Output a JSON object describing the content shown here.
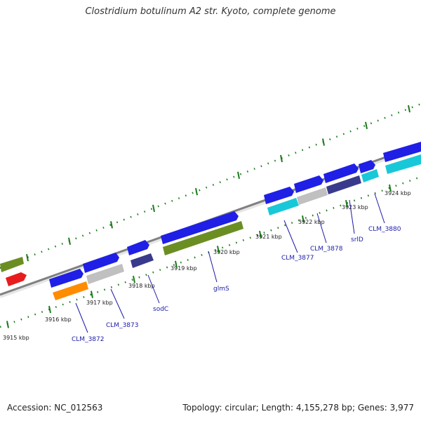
{
  "title": "Clostridium botulinum A2 str. Kyoto, complete genome",
  "footer": {
    "accession": "Accession: NC_012563",
    "summary": "Topology: circular; Length: 4,155,278 bp; Genes: 3,977"
  },
  "colors": {
    "blue_gene": "#1f1fe6",
    "olive": "#6b8e23",
    "red": "#e81c1c",
    "orange": "#ff8c00",
    "grey": "#c0c0c0",
    "navy": "#3a3a8c",
    "cyan": "#19c8d8",
    "tick": "#1a7a1a",
    "backbone": "#808080",
    "label": "#1a1aa6"
  },
  "kbp_labels": [
    "3915 kbp",
    "3916 kbp",
    "3917 kbp",
    "3918 kbp",
    "3919 kbp",
    "3920 kbp",
    "3921 kbp",
    "3922 kbp",
    "3923 kbp",
    "3924 kbp"
  ],
  "gene_labels": [
    "CLM_3872",
    "CLM_3873",
    "sodC",
    "glmS",
    "CLM_3877",
    "CLM_3878",
    "srlD",
    "CLM_3880"
  ]
}
